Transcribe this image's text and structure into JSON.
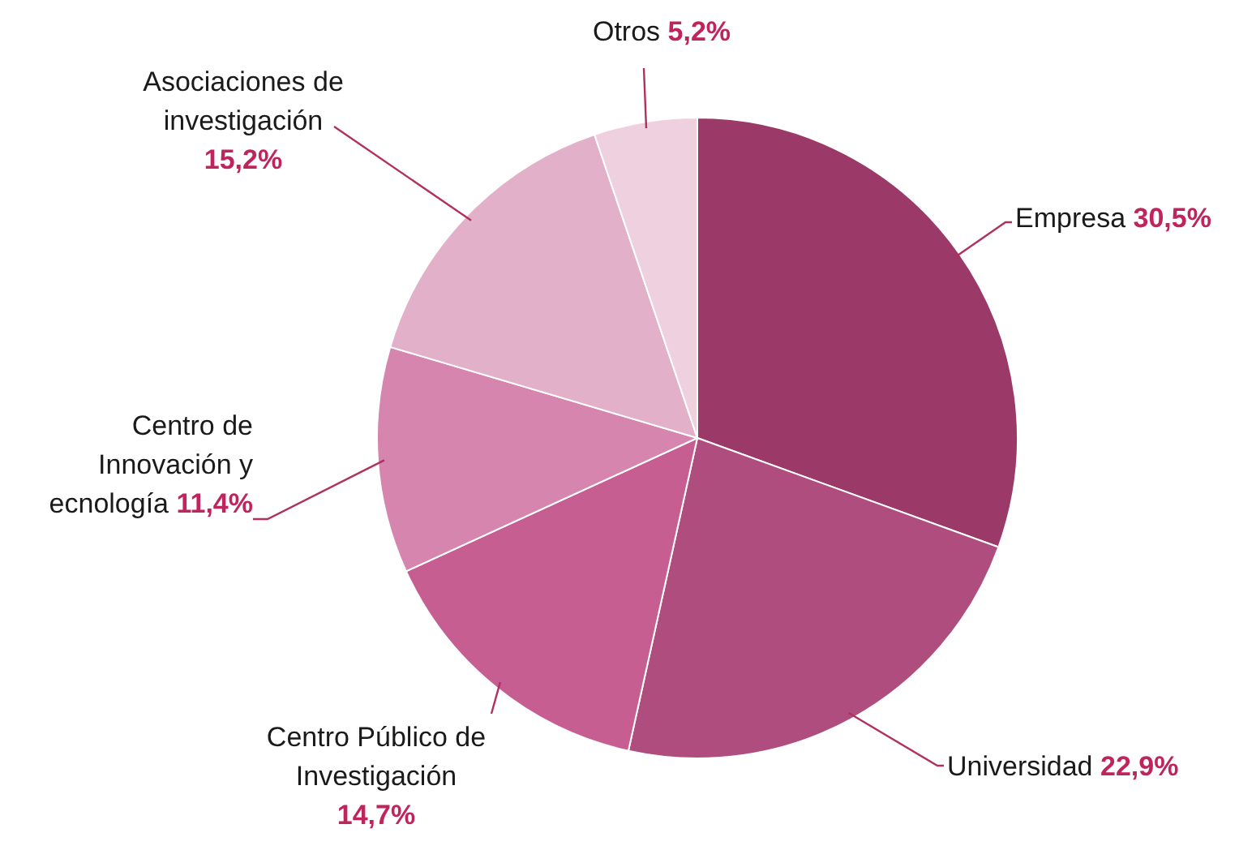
{
  "chart_data": {
    "type": "pie",
    "categories": [
      "Empresa",
      "Universidad",
      "Centro Público de Investigación",
      "Centro de Innovación y ecnología",
      "Asociaciones de investigación",
      "Otros"
    ],
    "values": [
      30.5,
      22.9,
      14.7,
      11.4,
      15.2,
      5.2
    ],
    "value_labels": [
      "30,5%",
      "22,9%",
      "14,7%",
      "11,4%",
      "15,2%",
      "5,2%"
    ],
    "colors": [
      "#9b3a68",
      "#b04d7f",
      "#c75e92",
      "#d585ae",
      "#e2b0c8",
      "#eed0df"
    ],
    "legend": false
  }
}
